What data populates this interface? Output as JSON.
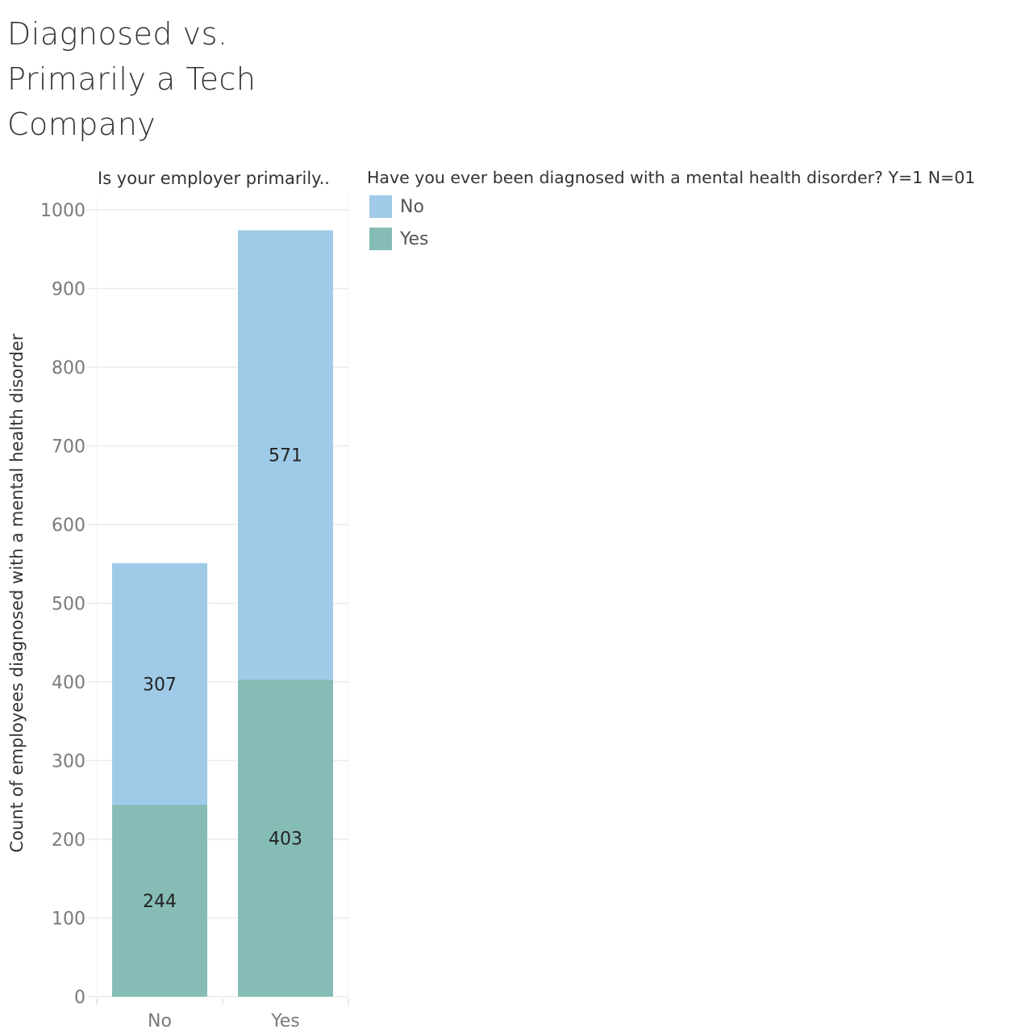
{
  "title": "Diagnosed vs. Primarily a Tech Company",
  "chart_data": {
    "type": "bar",
    "stacked": true,
    "column_header": "Is your employer primarily..",
    "categories": [
      "No",
      "Yes"
    ],
    "series": [
      {
        "name": "Yes",
        "values": [
          244,
          403
        ],
        "color": "#86bcb6"
      },
      {
        "name": "No",
        "values": [
          307,
          571
        ],
        "color": "#a0cbe8"
      }
    ],
    "ylabel": "Count of employees diagnosed with a mental health disorder",
    "ylim": [
      0,
      1000
    ],
    "yticks": [
      0,
      100,
      200,
      300,
      400,
      500,
      600,
      700,
      800,
      900,
      1000
    ],
    "grid": true,
    "legend": {
      "title": "Have you ever been diagnosed with a mental health disorder? Y=1 N=01",
      "placement": "right",
      "items": [
        {
          "label": "No",
          "color": "#a0cbe8"
        },
        {
          "label": "Yes",
          "color": "#86bcb6"
        }
      ]
    }
  }
}
